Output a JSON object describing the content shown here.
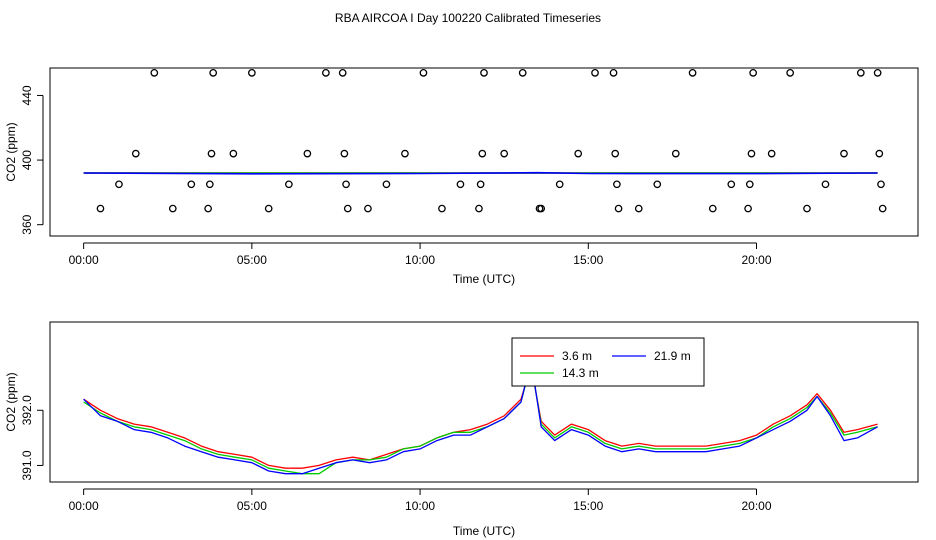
{
  "title": "RBA AIRCOA I  Day 100220  Calibrated Timeseries",
  "colors": {
    "red": "#ff0000",
    "green": "#00cc00",
    "blue": "#0000ff",
    "black": "#000000"
  },
  "chart_data": [
    {
      "type": "scatter",
      "title": "",
      "xlabel": "Time (UTC)",
      "ylabel": "CO2 (ppm)",
      "xlim": [
        -1.0,
        24.8
      ],
      "ylim": [
        353,
        457
      ],
      "x_ticks": [
        0,
        5,
        10,
        15,
        20
      ],
      "x_tick_labels": [
        "00:00",
        "05:00",
        "10:00",
        "15:00",
        "20:00"
      ],
      "y_ticks": [
        360,
        400,
        440
      ],
      "y_tick_labels": [
        "360",
        "400",
        "440"
      ],
      "series": [
        {
          "name": "points",
          "marker": "open-circle",
          "color": "#000000",
          "x": [
            0.5,
            1.05,
            1.55,
            2.1,
            2.65,
            3.2,
            3.7,
            3.75,
            3.8,
            3.85,
            4.45,
            5.0,
            5.5,
            6.1,
            6.65,
            7.2,
            7.7,
            7.75,
            7.8,
            7.85,
            8.45,
            9.0,
            9.55,
            10.1,
            10.65,
            11.2,
            11.75,
            11.8,
            11.85,
            11.9,
            12.5,
            13.05,
            13.55,
            13.6,
            14.15,
            14.7,
            15.2,
            15.75,
            15.8,
            15.85,
            15.9,
            16.5,
            17.05,
            17.6,
            18.1,
            18.7,
            19.25,
            19.75,
            19.8,
            19.85,
            19.9,
            20.45,
            21.0,
            21.5,
            22.05,
            22.6,
            23.1,
            23.6,
            23.65,
            23.7,
            23.75
          ],
          "y": [
            370,
            385,
            404,
            454,
            370,
            385,
            370,
            385,
            404,
            454,
            404,
            454,
            370,
            385,
            404,
            454,
            454,
            404,
            385,
            370,
            370,
            385,
            404,
            454,
            370,
            385,
            370,
            385,
            404,
            454,
            404,
            454,
            370,
            370,
            385,
            404,
            454,
            454,
            404,
            385,
            370,
            370,
            385,
            404,
            454,
            370,
            385,
            370,
            385,
            404,
            454,
            404,
            454,
            370,
            385,
            404,
            454,
            454,
            404,
            385,
            370
          ]
        },
        {
          "name": "3.6 m",
          "color": "#ff0000",
          "x": [
            0,
            23.6
          ],
          "y": [
            392,
            392
          ]
        },
        {
          "name": "14.3 m",
          "color": "#00cc00",
          "x": [
            0,
            23.6
          ],
          "y": [
            392,
            392
          ]
        },
        {
          "name": "21.9 m",
          "color": "#0000ff",
          "x": [
            0,
            5,
            10,
            13.5,
            15,
            20,
            23.6
          ],
          "y": [
            392,
            391.5,
            391.7,
            392.2,
            391.7,
            391.6,
            392
          ]
        }
      ]
    },
    {
      "type": "line",
      "title": "",
      "xlabel": "Time (UTC)",
      "ylabel": "CO2 (ppm)",
      "xlim": [
        -1.0,
        24.8
      ],
      "ylim": [
        390.7,
        393.6
      ],
      "x_ticks": [
        0,
        5,
        10,
        15,
        20
      ],
      "x_tick_labels": [
        "00:00",
        "05:00",
        "10:00",
        "15:00",
        "20:00"
      ],
      "y_ticks": [
        391.0,
        392.0
      ],
      "y_tick_labels": [
        "391.0",
        "392.0"
      ],
      "legend": {
        "placement": "top-center",
        "entries": [
          "3.6 m",
          "14.3 m",
          "21.9 m"
        ]
      },
      "series": [
        {
          "name": "3.6 m",
          "color": "#ff0000",
          "x": [
            0,
            0.5,
            1,
            1.5,
            2,
            2.5,
            3,
            3.5,
            4,
            4.5,
            5,
            5.5,
            6,
            6.5,
            7,
            7.5,
            8,
            8.5,
            9,
            9.5,
            10,
            10.5,
            11,
            11.5,
            12,
            12.5,
            13,
            13.3,
            13.6,
            14,
            14.5,
            15,
            15.5,
            16,
            16.5,
            17,
            17.5,
            18,
            18.5,
            19,
            19.5,
            20,
            20.5,
            21,
            21.5,
            21.8,
            22.2,
            22.6,
            23,
            23.6
          ],
          "y": [
            392.2,
            392.0,
            391.85,
            391.75,
            391.7,
            391.6,
            391.5,
            391.35,
            391.25,
            391.2,
            391.15,
            391.0,
            390.95,
            390.95,
            391.0,
            391.1,
            391.15,
            391.1,
            391.2,
            391.3,
            391.35,
            391.5,
            391.6,
            391.65,
            391.75,
            391.9,
            392.2,
            392.8,
            391.8,
            391.55,
            391.75,
            391.65,
            391.45,
            391.35,
            391.4,
            391.35,
            391.35,
            391.35,
            391.35,
            391.4,
            391.45,
            391.55,
            391.75,
            391.9,
            392.1,
            392.3,
            392.0,
            391.6,
            391.65,
            391.75
          ]
        },
        {
          "name": "14.3 m",
          "color": "#00cc00",
          "x": [
            0,
            0.5,
            1,
            1.5,
            2,
            2.5,
            3,
            3.5,
            4,
            4.5,
            5,
            5.5,
            6,
            6.5,
            7,
            7.5,
            8,
            8.5,
            9,
            9.5,
            10,
            10.5,
            11,
            11.5,
            12,
            12.5,
            13,
            13.3,
            13.6,
            14,
            14.5,
            15,
            15.5,
            16,
            16.5,
            17,
            17.5,
            18,
            18.5,
            19,
            19.5,
            20,
            20.5,
            21,
            21.5,
            21.8,
            22.2,
            22.6,
            23,
            23.6
          ],
          "y": [
            392.15,
            391.95,
            391.8,
            391.7,
            391.65,
            391.55,
            391.45,
            391.3,
            391.2,
            391.15,
            391.1,
            390.95,
            390.9,
            390.85,
            390.85,
            391.05,
            391.1,
            391.1,
            391.15,
            391.3,
            391.35,
            391.5,
            391.6,
            391.6,
            391.7,
            391.85,
            392.15,
            392.85,
            391.75,
            391.5,
            391.7,
            391.6,
            391.4,
            391.3,
            391.35,
            391.3,
            391.3,
            391.3,
            391.3,
            391.35,
            391.4,
            391.5,
            391.7,
            391.85,
            392.05,
            392.25,
            391.95,
            391.55,
            391.6,
            391.7
          ]
        },
        {
          "name": "21.9 m",
          "color": "#0000ff",
          "x": [
            0,
            0.5,
            1,
            1.5,
            2,
            2.5,
            3,
            3.5,
            4,
            4.5,
            5,
            5.5,
            6,
            6.5,
            7,
            7.5,
            8,
            8.5,
            9,
            9.5,
            10,
            10.5,
            11,
            11.5,
            12,
            12.5,
            13,
            13.3,
            13.6,
            14,
            14.5,
            15,
            15.5,
            16,
            16.5,
            17,
            17.5,
            18,
            18.5,
            19,
            19.5,
            20,
            20.5,
            21,
            21.5,
            21.8,
            22.2,
            22.6,
            23,
            23.6
          ],
          "y": [
            392.2,
            391.9,
            391.8,
            391.65,
            391.6,
            391.5,
            391.35,
            391.25,
            391.15,
            391.1,
            391.05,
            390.9,
            390.85,
            390.85,
            390.95,
            391.05,
            391.1,
            391.05,
            391.1,
            391.25,
            391.3,
            391.45,
            391.55,
            391.55,
            391.7,
            391.85,
            392.15,
            392.9,
            391.7,
            391.45,
            391.65,
            391.55,
            391.35,
            391.25,
            391.3,
            391.25,
            391.25,
            391.25,
            391.25,
            391.3,
            391.35,
            391.5,
            391.65,
            391.8,
            392.0,
            392.25,
            391.9,
            391.45,
            391.5,
            391.7
          ]
        }
      ]
    }
  ]
}
